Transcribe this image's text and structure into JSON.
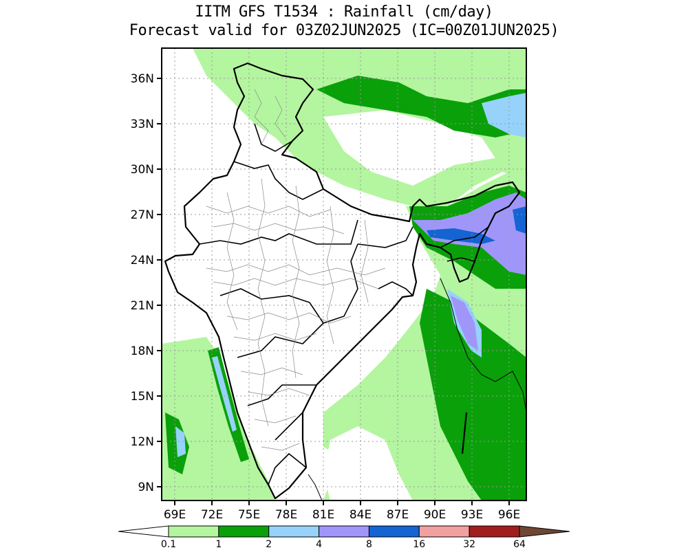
{
  "title": {
    "line1": "IITM GFS T1534 : Rainfall (cm/day)",
    "line2": "Forecast valid for 03Z02JUN2025 (IC=00Z01JUN2025)"
  },
  "axes": {
    "lat_labels": [
      "36N",
      "33N",
      "30N",
      "27N",
      "24N",
      "21N",
      "18N",
      "15N",
      "12N",
      "9N"
    ],
    "lon_labels": [
      "69E",
      "72E",
      "75E",
      "78E",
      "81E",
      "84E",
      "87E",
      "90E",
      "93E",
      "96E"
    ]
  },
  "colorbar": {
    "levels": [
      "0.1",
      "1",
      "2",
      "4",
      "8",
      "16",
      "32",
      "64"
    ],
    "colors": [
      "#ffffff",
      "#b4f5a0",
      "#0aa00a",
      "#96d2fa",
      "#a096fa",
      "#1464d2",
      "#f0a0a0",
      "#a01e1e",
      "#6e4632"
    ]
  },
  "colors": {
    "light_green": "#b4f5a0",
    "dark_green": "#0aa00a",
    "light_blue": "#96d2fa",
    "lavender": "#a096fa",
    "blue": "#1464d2"
  }
}
